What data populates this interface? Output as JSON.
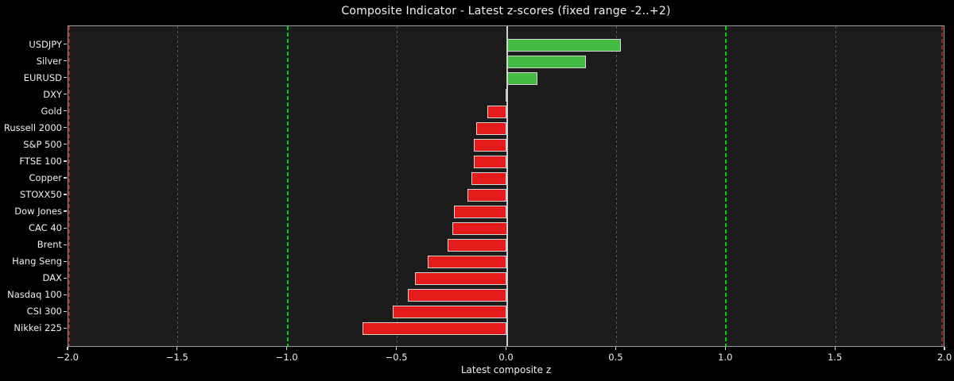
{
  "chart_data": {
    "type": "bar",
    "orientation": "horizontal",
    "title": "Composite Indicator - Latest z-scores (fixed range -2..+2)",
    "xlabel": "Latest composite z",
    "categories": [
      "USDJPY",
      "Silver",
      "EURUSD",
      "DXY",
      "Gold",
      "Russell 2000",
      "S&P 500",
      "FTSE 100",
      "Copper",
      "STOXX50",
      "Dow Jones",
      "CAC 40",
      "Brent",
      "Hang Seng",
      "DAX",
      "Nasdaq 100",
      "CSI 300",
      "Nikkei 225"
    ],
    "values": [
      0.52,
      0.36,
      0.14,
      0.0,
      -0.09,
      -0.14,
      -0.15,
      -0.15,
      -0.16,
      -0.18,
      -0.24,
      -0.25,
      -0.27,
      -0.36,
      -0.42,
      -0.45,
      -0.52,
      -0.66
    ],
    "xlim": [
      -2.0,
      2.0
    ],
    "x_ticks": [
      {
        "value": -2.0,
        "label": "−2.0"
      },
      {
        "value": -1.5,
        "label": "−1.5"
      },
      {
        "value": -1.0,
        "label": "−1.0"
      },
      {
        "value": -0.5,
        "label": "−0.5"
      },
      {
        "value": 0.0,
        "label": "0.0"
      },
      {
        "value": 0.5,
        "label": "0.5"
      },
      {
        "value": 1.0,
        "label": "1.0"
      },
      {
        "value": 1.5,
        "label": "1.5"
      },
      {
        "value": 2.0,
        "label": "2.0"
      }
    ],
    "reference_lines": [
      {
        "value": -2.0,
        "style": "dashed-red"
      },
      {
        "value": -1.5,
        "style": "dashed-gray"
      },
      {
        "value": -1.0,
        "style": "dashed-green"
      },
      {
        "value": -0.5,
        "style": "dashed-gray"
      },
      {
        "value": 0.0,
        "style": "solid-zero"
      },
      {
        "value": 0.5,
        "style": "dashed-gray"
      },
      {
        "value": 1.0,
        "style": "dashed-green"
      },
      {
        "value": 1.5,
        "style": "dashed-gray"
      },
      {
        "value": 2.0,
        "style": "dashed-red"
      }
    ],
    "legend": "none",
    "grid": "vertical-dashed",
    "colors": {
      "positive_bar": "#43bb43",
      "negative_bar": "#e51a1a",
      "bar_edge": "#d4d4d4",
      "zero_line": "#cfcfcf",
      "grid_gray": "#5a5a5a",
      "threshold_green": "#00d400",
      "threshold_red": "#9b2226",
      "plot_background": "#1c1c1c",
      "figure_background": "#000000",
      "text": "#f0f0f0"
    }
  }
}
